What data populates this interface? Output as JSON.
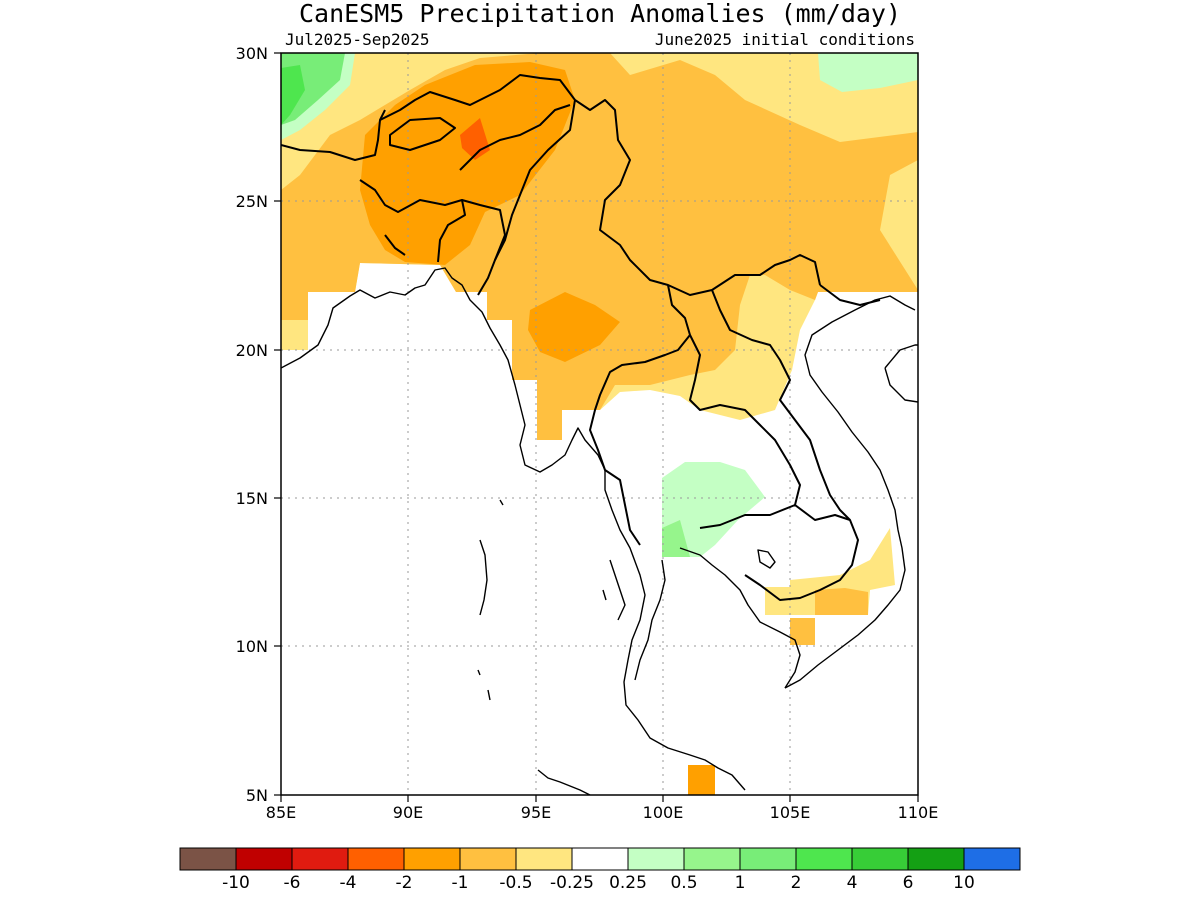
{
  "map": {
    "title": "CanESM5 Precipitation Anomalies (mm/day)",
    "period": "Jul2025-Sep2025",
    "init": "June2025 initial conditions",
    "lon_labels": [
      "85E",
      "90E",
      "95E",
      "100E",
      "105E",
      "110E"
    ],
    "lat_labels": [
      "30N",
      "25N",
      "20N",
      "15N",
      "10N",
      "5N"
    ]
  },
  "colorbar": {
    "colors": [
      "#7b5346",
      "#c00000",
      "#e01b10",
      "#ff6000",
      "#ffa000",
      "#ffc040",
      "#ffe680",
      "#ffffff",
      "#c4ffc4",
      "#96f58c",
      "#78ed78",
      "#4ee64e",
      "#37cd37",
      "#14a014",
      "#1e6ee6"
    ],
    "labels": [
      "-10",
      "-6",
      "-4",
      "-2",
      "-1",
      "-0.5",
      "-0.25",
      "0.25",
      "0.5",
      "1",
      "2",
      "4",
      "6",
      "10"
    ]
  }
}
